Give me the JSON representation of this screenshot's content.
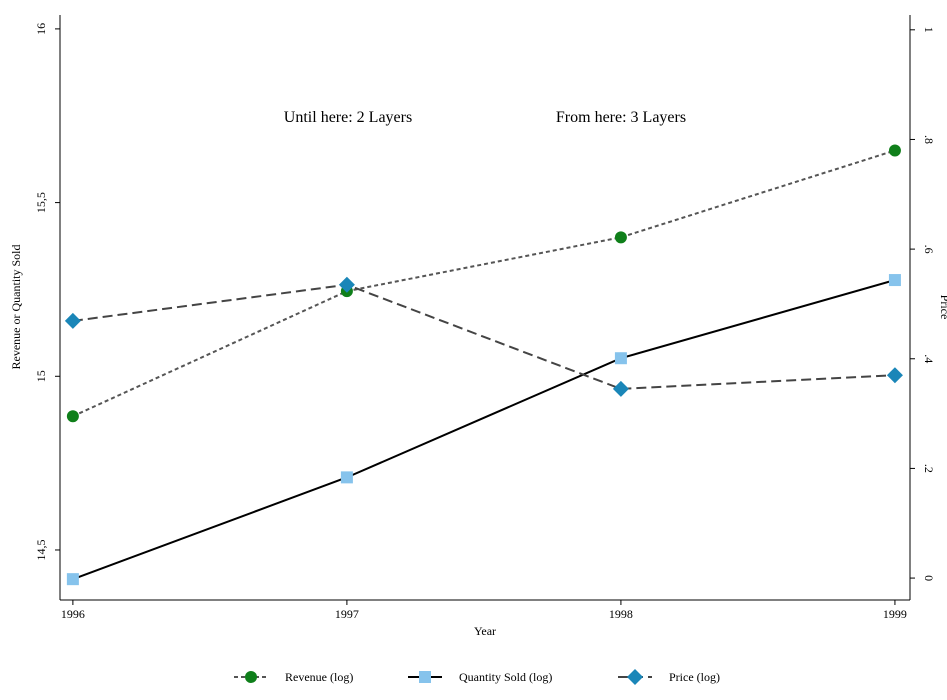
{
  "chart_data": {
    "type": "line",
    "x_label": "Year",
    "y_label": "Revenue or Quantity Sold",
    "y2_label": "Price",
    "annotations": [
      "Until here: 2 Layers",
      "From here: 3 Layers"
    ],
    "x": [
      1996,
      1997,
      1998,
      1999
    ],
    "xlim": [
      1995.953,
      1999.055
    ],
    "xticks": [
      1996,
      1997,
      1998,
      1999
    ],
    "ylim": [
      14.356,
      16.04
    ],
    "yticks": [
      {
        "value": 14.5,
        "label": "14,5"
      },
      15,
      {
        "value": 15.5,
        "label": "15,5"
      },
      16
    ],
    "y2lim": [
      -0.04,
      1.027
    ],
    "y2ticks": [
      0,
      {
        "value": 0.2,
        "label": ".2"
      },
      {
        "value": 0.4,
        "label": ".4"
      },
      {
        "value": 0.6,
        "label": ".6"
      },
      {
        "value": 0.8,
        "label": ".8"
      },
      1
    ],
    "series": [
      {
        "name": "Revenue (log)",
        "color": "#0f7f1a",
        "line_color": "#555555",
        "line_style": "dotted",
        "marker": "circle",
        "values": [
          14.885,
          15.245,
          15.4,
          15.65
        ]
      },
      {
        "name": "Quantity Sold (log)",
        "color": "#86c3ec",
        "line_color": "#000000",
        "line_style": "solid",
        "marker": "square",
        "values": [
          14.416,
          14.709,
          15.052,
          15.277
        ]
      },
      {
        "name": "Price (log)",
        "color": "#1a86b8",
        "line_color": "#444444",
        "line_style": "dashed",
        "marker": "diamond",
        "axis": "y2",
        "values": [
          0.469,
          0.535,
          0.345,
          0.37
        ]
      }
    ]
  }
}
